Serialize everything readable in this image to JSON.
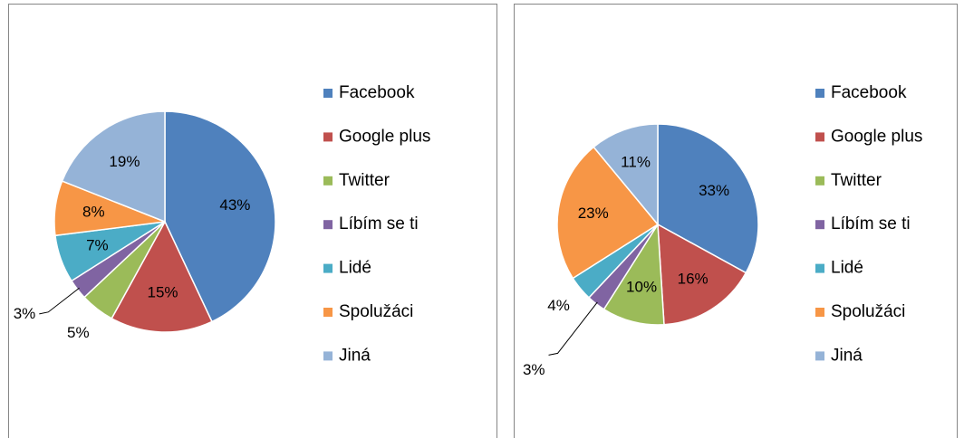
{
  "chart_data": [
    {
      "type": "pie",
      "categories": [
        "Facebook",
        "Google plus",
        "Twitter",
        "Líbím se ti",
        "Lidé",
        "Spolužáci",
        "Jiná"
      ],
      "values": [
        43,
        15,
        5,
        3,
        7,
        8,
        19
      ],
      "value_labels": [
        "43%",
        "15%",
        "5%",
        "3%",
        "7%",
        "8%",
        "19%"
      ],
      "colors": [
        "#4f81bd",
        "#c0504d",
        "#9bbb59",
        "#8064a2",
        "#4bacc6",
        "#f79646",
        "#95b3d7"
      ],
      "legend": "right"
    },
    {
      "type": "pie",
      "categories": [
        "Facebook",
        "Google plus",
        "Twitter",
        "Líbím se ti",
        "Lidé",
        "Spolužáci",
        "Jiná"
      ],
      "values": [
        33,
        16,
        10,
        3,
        4,
        23,
        11
      ],
      "value_labels": [
        "33%",
        "16%",
        "10%",
        "3%",
        "4%",
        "23%",
        "11%"
      ],
      "colors": [
        "#4f81bd",
        "#c0504d",
        "#9bbb59",
        "#8064a2",
        "#4bacc6",
        "#f79646",
        "#95b3d7"
      ],
      "legend": "right"
    }
  ]
}
